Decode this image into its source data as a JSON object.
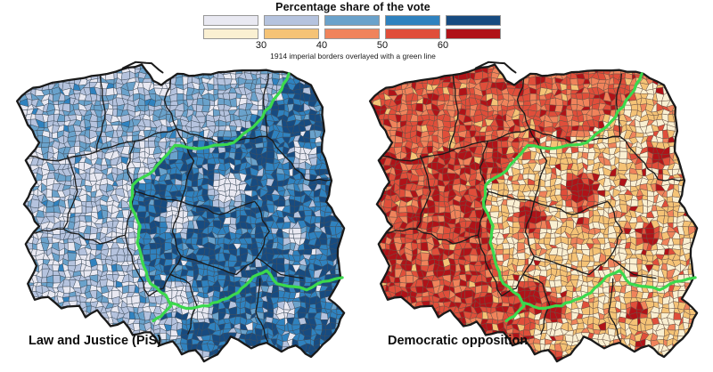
{
  "figure": {
    "title": "Percentage share of the vote",
    "note": "1914 imperial borders overlayed with a green line"
  },
  "legend": {
    "ticks": [
      "30",
      "40",
      "50",
      "60"
    ],
    "rows": [
      {
        "name": "blue",
        "colors": [
          "#e9e9f2",
          "#b5c3de",
          "#6aa2cb",
          "#2f82bf",
          "#174b80"
        ]
      },
      {
        "name": "red",
        "colors": [
          "#faf0d2",
          "#f5c376",
          "#f0835b",
          "#e04e3a",
          "#b01218"
        ]
      }
    ]
  },
  "maps": [
    {
      "id": "pis",
      "label": "Law and Justice (PiS)",
      "palette_row": 0,
      "cell_border": "#3f4e5e"
    },
    {
      "id": "opposition",
      "label": "Democratic opposition",
      "palette_row": 1,
      "cell_border": "#6b5244"
    }
  ],
  "overlay": {
    "green_line_color": "#3bd94d",
    "outline_color": "#1a1a1a",
    "region_border_color": "#1a1a1a"
  },
  "chart_data": {
    "type": "choropleth",
    "title": "Percentage share of the vote",
    "annotation": "1914 imperial borders overlayed with a green line",
    "unit": "%",
    "bins": [
      "<30",
      "30-40",
      "40-50",
      "50-60",
      ">60"
    ],
    "tick_labels": [
      30,
      40,
      50,
      60
    ],
    "legend_position": "top-center",
    "panels": [
      {
        "label": "Law and Justice (PiS)",
        "palette": "light-lavender to dark navy blue",
        "pattern": "vote share mostly 50->60+ east and south-east of the green 1914 imperial border (former Russian and Austrian partitions, incl. Galicia); mostly <30-40 in western and northern Poland (former German partition); large cities appear as lighter clusters"
      },
      {
        "label": "Democratic opposition",
        "palette": "cream to dark red",
        "pattern": "inverse of the PiS panel: 50->60+ in western and northern Poland, <30-40 east and south-east of the green border; large cities appear as darker red clusters"
      }
    ]
  }
}
